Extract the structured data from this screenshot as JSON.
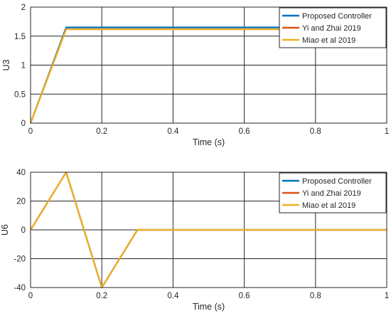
{
  "chart_data": [
    {
      "type": "line",
      "xlabel": "Time (s)",
      "ylabel": "U3",
      "xlim": [
        0,
        1
      ],
      "ylim": [
        0,
        2
      ],
      "xticks": [
        0,
        0.2,
        0.4,
        0.6,
        0.8,
        1
      ],
      "xtick_labels": [
        "0",
        "0.2",
        "0.4",
        "0.6",
        "0.8",
        "1"
      ],
      "yticks": [
        0,
        0.5,
        1,
        1.5,
        2
      ],
      "ytick_labels": [
        "0",
        "0.5",
        "1",
        "1.5",
        "2"
      ],
      "grid": true,
      "legend_position": "top-right",
      "series": [
        {
          "name": "Proposed Controller",
          "color": "#0072BD",
          "x": [
            0,
            0.1,
            1
          ],
          "y": [
            0,
            1.65,
            1.65
          ]
        },
        {
          "name": "Yi and Zhai 2019",
          "color": "#D95319",
          "x": [
            0,
            0.1,
            1
          ],
          "y": [
            0,
            1.62,
            1.62
          ]
        },
        {
          "name": "Miao et al 2019",
          "color": "#EDB120",
          "x": [
            0,
            0.1,
            1
          ],
          "y": [
            0,
            1.62,
            1.62
          ]
        }
      ]
    },
    {
      "type": "line",
      "xlabel": "Time (s)",
      "ylabel": "U6",
      "xlim": [
        0,
        1
      ],
      "ylim": [
        -40,
        40
      ],
      "xticks": [
        0,
        0.2,
        0.4,
        0.6,
        0.8,
        1
      ],
      "xtick_labels": [
        "0",
        "0.2",
        "0.4",
        "0.6",
        "0.8",
        "1"
      ],
      "yticks": [
        -40,
        -20,
        0,
        20,
        40
      ],
      "ytick_labels": [
        "-40",
        "-20",
        "0",
        "20",
        "40"
      ],
      "grid": true,
      "legend_position": "top-right",
      "series": [
        {
          "name": "Proposed Controller",
          "color": "#0072BD",
          "x": [
            0,
            0.1,
            0.2,
            0.3,
            1
          ],
          "y": [
            0,
            40,
            -40,
            0,
            0
          ]
        },
        {
          "name": "Yi and Zhai 2019",
          "color": "#D95319",
          "x": [
            0,
            0.1,
            0.2,
            0.3,
            1
          ],
          "y": [
            0,
            40,
            -40,
            0,
            0
          ]
        },
        {
          "name": "Miao et al 2019",
          "color": "#EDB120",
          "x": [
            0,
            0.1,
            0.2,
            0.3,
            1
          ],
          "y": [
            0,
            40,
            -40,
            0,
            0
          ]
        }
      ]
    }
  ]
}
